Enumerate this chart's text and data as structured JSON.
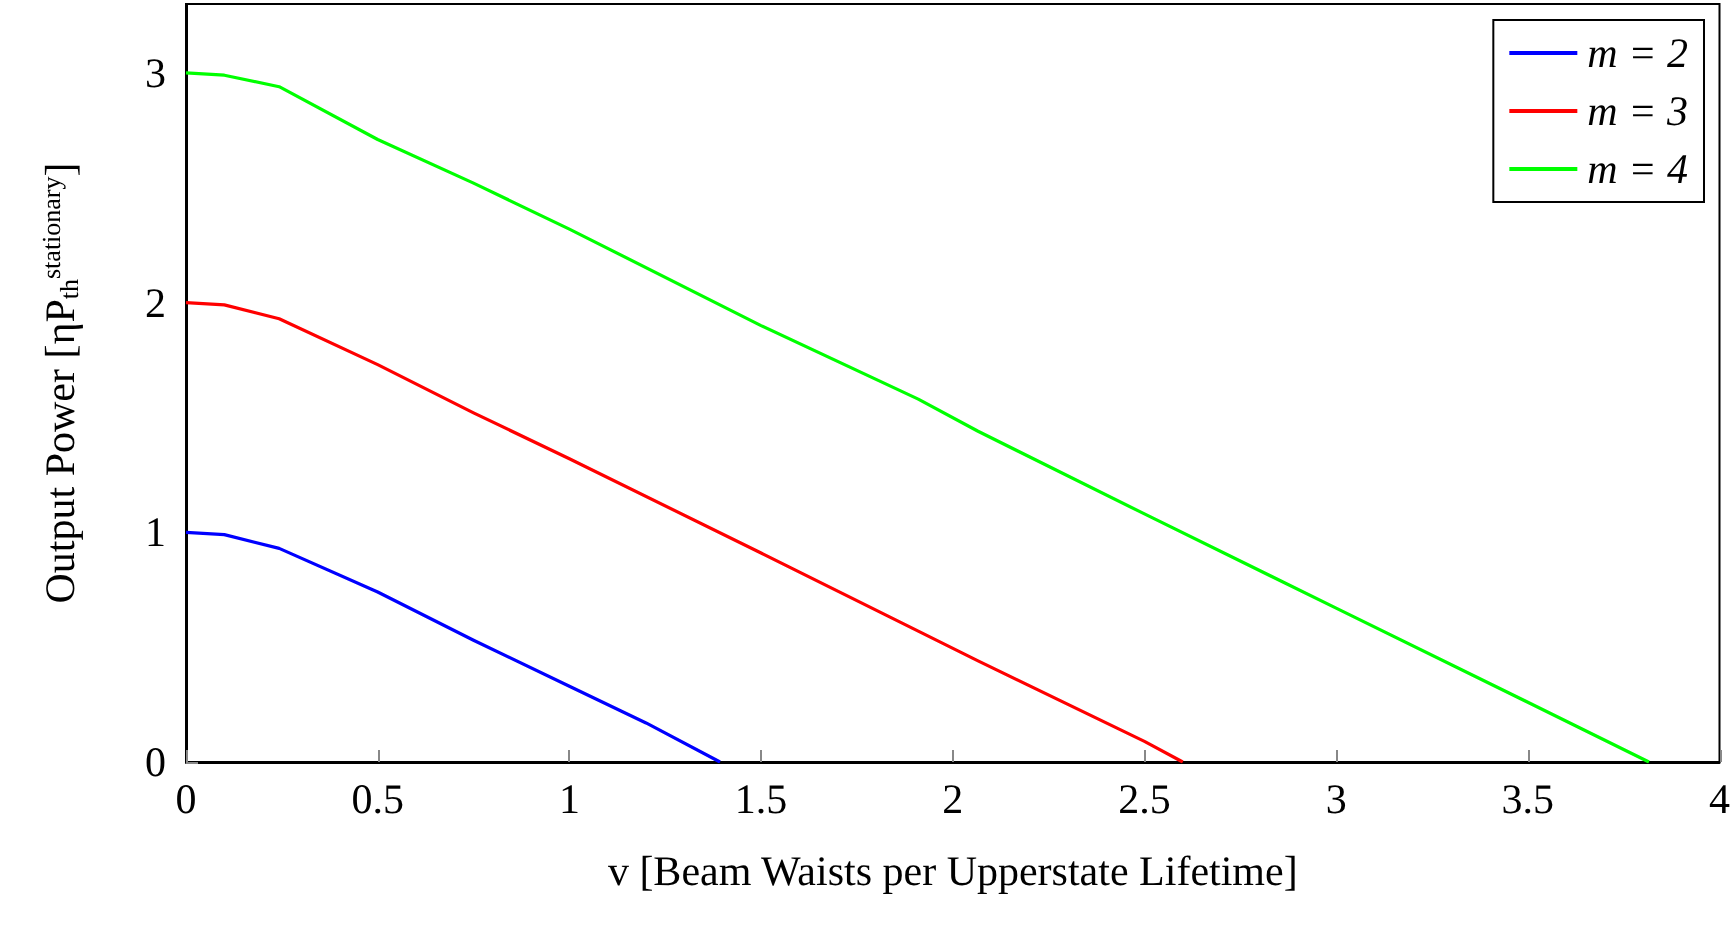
{
  "chart_data": {
    "type": "line",
    "xlabel": "v [Beam Waists per Upperstate Lifetime]",
    "ylabel": "Output Power [ηP$_{th}$$^{stationary}$]",
    "xlim": [
      0,
      4
    ],
    "ylim": [
      0,
      3.3
    ],
    "xticks": [
      0,
      0.5,
      1,
      1.5,
      2,
      2.5,
      3,
      3.5,
      4
    ],
    "yticks": [
      0,
      1,
      2,
      3
    ],
    "grid": false,
    "legend": "top right",
    "marker": "none",
    "line_style": "solid",
    "series": [
      {
        "name": "m = 2",
        "color": "#0000ff",
        "x": [
          0,
          0.1,
          0.243,
          0.5,
          0.75,
          1,
          1.2,
          1.393
        ],
        "values": [
          1,
          0.99,
          0.93,
          0.74,
          0.53,
          0.33,
          0.17,
          0
        ]
      },
      {
        "name": "m = 3",
        "color": "#ff0000",
        "x": [
          0,
          0.1,
          0.243,
          0.5,
          0.75,
          1,
          1.5,
          1.91,
          2.066,
          2.5,
          2.6
        ],
        "values": [
          2,
          1.99,
          1.93,
          1.73,
          1.52,
          1.32,
          0.91,
          0.57,
          0.44,
          0.09,
          0
        ]
      },
      {
        "name": "m = 4",
        "color": "#00ff00",
        "x": [
          0,
          0.1,
          0.243,
          0.5,
          0.75,
          1,
          1.5,
          1.91,
          2.066,
          2.5,
          3,
          3.5,
          3.816
        ],
        "values": [
          3,
          2.99,
          2.94,
          2.71,
          2.52,
          2.32,
          1.9,
          1.58,
          1.44,
          1.08,
          0.67,
          0.26,
          0
        ]
      }
    ]
  }
}
